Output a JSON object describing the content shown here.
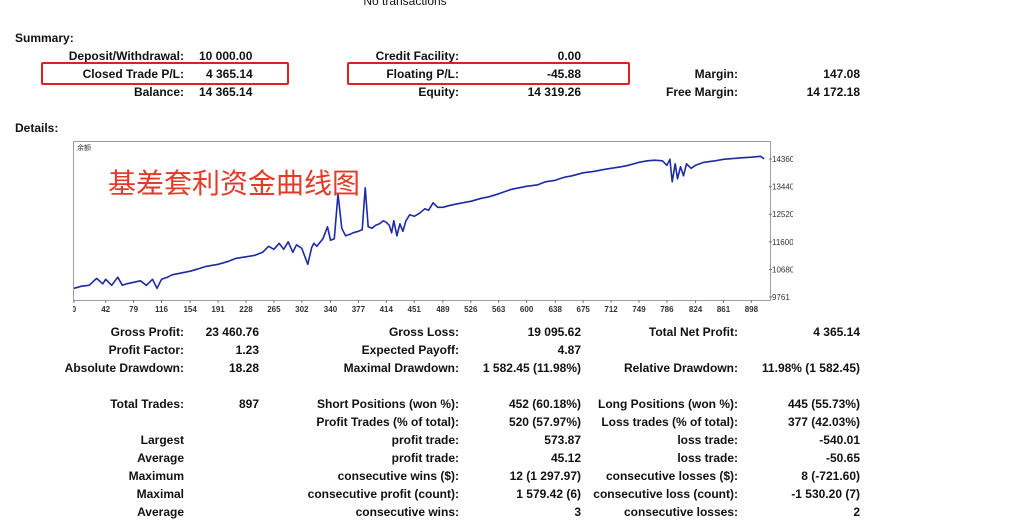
{
  "top_note": "No transactions",
  "summary": {
    "heading": "Summary:",
    "rows": [
      [
        {
          "label": "Deposit/Withdrawal:",
          "value": "10 000.00"
        },
        {
          "label": "Credit Facility:",
          "value": "0.00"
        },
        {
          "label": "",
          "value": ""
        }
      ],
      [
        {
          "label": "Closed Trade P/L:",
          "value": "4 365.14"
        },
        {
          "label": "Floating P/L:",
          "value": "-45.88"
        },
        {
          "label": "Margin:",
          "value": "147.08"
        }
      ],
      [
        {
          "label": "Balance:",
          "value": "14 365.14"
        },
        {
          "label": "Equity:",
          "value": "14 319.26"
        },
        {
          "label": "Free Margin:",
          "value": "14 172.18"
        }
      ]
    ]
  },
  "details": {
    "heading": "Details:",
    "chart_overlay_text": "基差套利资金曲线图",
    "chart_corner_label": "余额"
  },
  "chart_data": {
    "type": "line",
    "title": "",
    "xlabel": "",
    "ylabel": "",
    "xlim": [
      0,
      920
    ],
    "ylim": [
      9761,
      14760
    ],
    "x_ticks": [
      0,
      42,
      79,
      116,
      154,
      191,
      228,
      265,
      302,
      340,
      377,
      414,
      451,
      489,
      526,
      563,
      600,
      638,
      675,
      712,
      749,
      786,
      824,
      861,
      898
    ],
    "y_ticks": [
      9761,
      10680,
      11600,
      12520,
      13440,
      14360
    ],
    "series": [
      {
        "color": "#1c2aa6",
        "x": [
          0,
          10,
          20,
          30,
          38,
          42,
          50,
          58,
          64,
          70,
          79,
          88,
          96,
          104,
          110,
          116,
          124,
          130,
          140,
          154,
          165,
          175,
          191,
          205,
          215,
          228,
          240,
          250,
          258,
          265,
          272,
          278,
          284,
          290,
          295,
          302,
          310,
          315,
          318,
          322,
          330,
          336,
          340,
          345,
          350,
          355,
          360,
          366,
          370,
          377,
          382,
          386,
          390,
          395,
          400,
          405,
          410,
          414,
          418,
          421,
          424,
          428,
          432,
          436,
          440,
          445,
          451,
          458,
          465,
          470,
          476,
          482,
          489,
          496,
          505,
          515,
          526,
          540,
          550,
          563,
          580,
          600,
          615,
          625,
          638,
          650,
          660,
          675,
          690,
          700,
          712,
          725,
          735,
          749,
          760,
          770,
          780,
          786,
          790,
          793,
          797,
          800,
          804,
          808,
          812,
          818,
          824,
          835,
          850,
          861,
          875,
          885,
          898,
          910,
          915
        ],
        "values": [
          10050,
          10120,
          10150,
          10380,
          10200,
          10350,
          10150,
          10420,
          10150,
          10200,
          10250,
          10300,
          10150,
          10350,
          10050,
          10350,
          10420,
          10500,
          10550,
          10620,
          10700,
          10780,
          10850,
          10950,
          11050,
          11100,
          11150,
          11250,
          11450,
          11350,
          11550,
          11350,
          11600,
          11250,
          11500,
          11380,
          10850,
          11400,
          11550,
          11450,
          11700,
          12100,
          11650,
          11700,
          13200,
          12050,
          11800,
          11850,
          11900,
          11950,
          12000,
          13400,
          12100,
          12050,
          12150,
          12200,
          12300,
          12250,
          12150,
          11900,
          12300,
          11800,
          12200,
          11950,
          12300,
          12500,
          12450,
          12550,
          12700,
          12650,
          12900,
          12750,
          12750,
          12800,
          12850,
          12900,
          12950,
          13050,
          13100,
          13200,
          13350,
          13450,
          13500,
          13600,
          13650,
          13750,
          13800,
          13900,
          13950,
          14000,
          14050,
          14100,
          14150,
          14250,
          14300,
          14320,
          14300,
          14150,
          14350,
          13600,
          14200,
          13700,
          14100,
          13800,
          14200,
          14050,
          14150,
          14250,
          14300,
          14350,
          14380,
          14400,
          14420,
          14450,
          14365
        ]
      }
    ],
    "grid": false,
    "legend": "none"
  },
  "stats": {
    "row1": [
      {
        "label": "Gross Profit:",
        "value": "23 460.76"
      },
      {
        "label": "Gross Loss:",
        "value": "19 095.62"
      },
      {
        "label": "Total Net Profit:",
        "value": "4 365.14"
      }
    ],
    "row2": [
      {
        "label": "Profit Factor:",
        "value": "1.23"
      },
      {
        "label": "Expected Payoff:",
        "value": "4.87"
      }
    ],
    "row3": [
      {
        "label": "Absolute Drawdown:",
        "value": "18.28"
      },
      {
        "label": "Maximal Drawdown:",
        "value": "1 582.45 (11.98%)"
      },
      {
        "label": "Relative Drawdown:",
        "value": "11.98% (1 582.45)"
      }
    ]
  },
  "trades": {
    "total": {
      "label": "Total Trades:",
      "value": "897"
    },
    "short": {
      "label": "Short Positions (won %):",
      "value": "452 (60.18%)"
    },
    "long": {
      "label": "Long Positions (won %):",
      "value": "445 (55.73%)"
    },
    "profit_trades": {
      "label": "Profit Trades (% of total):",
      "value": "520 (57.97%)"
    },
    "loss_trades": {
      "label": "Loss trades (% of total):",
      "value": "377 (42.03%)"
    },
    "rows": [
      {
        "group": "Largest",
        "mid_label": "profit trade:",
        "mid_value": "573.87",
        "right_label": "loss trade:",
        "right_value": "-540.01"
      },
      {
        "group": "Average",
        "mid_label": "profit trade:",
        "mid_value": "45.12",
        "right_label": "loss trade:",
        "right_value": "-50.65"
      },
      {
        "group": "Maximum",
        "mid_label": "consecutive wins ($):",
        "mid_value": "12 (1 297.97)",
        "right_label": "consecutive losses ($):",
        "right_value": "8 (-721.60)"
      },
      {
        "group": "Maximal",
        "mid_label": "consecutive profit (count):",
        "mid_value": "1 579.42 (6)",
        "right_label": "consecutive loss (count):",
        "right_value": "-1 530.20 (7)"
      },
      {
        "group": "Average",
        "mid_label": "consecutive wins:",
        "mid_value": "3",
        "right_label": "consecutive losses:",
        "right_value": "2"
      }
    ]
  }
}
